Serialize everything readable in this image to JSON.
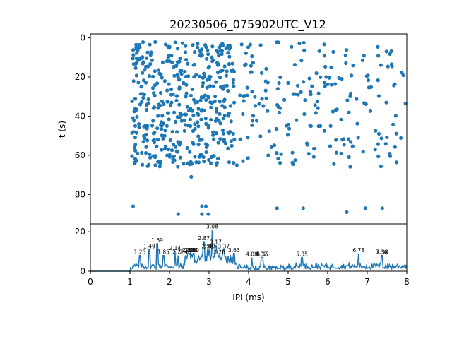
{
  "title": "20230506_075902UTC_V12",
  "colors": {
    "series": "#1f77b4",
    "axis": "#000000",
    "background": "#ffffff"
  },
  "chart_data": [
    {
      "type": "scatter",
      "title": "20230506_075902UTC_V12",
      "xlabel": "",
      "ylabel": "t (s)",
      "xlim": [
        0,
        8
      ],
      "ylim": [
        95,
        -2
      ],
      "y_inverted": true,
      "yticks": [
        0,
        20,
        40,
        60,
        80
      ],
      "grid": false,
      "legend": "none",
      "bands": [
        {
          "name": "band-0-66s",
          "x_range": [
            1.05,
            8.0
          ],
          "y_range": [
            2,
            66
          ],
          "count": 640
        },
        {
          "name": "sparse-70s",
          "points": [
            [
              2.55,
              71
            ]
          ]
        },
        {
          "name": "sparse-86s",
          "points": [
            [
              1.08,
              86
            ],
            [
              2.82,
              86
            ],
            [
              2.92,
              86
            ],
            [
              4.72,
              87
            ],
            [
              5.38,
              87
            ],
            [
              6.95,
              87
            ],
            [
              7.38,
              87
            ]
          ]
        },
        {
          "name": "sparse-90s",
          "points": [
            [
              2.22,
              90
            ],
            [
              2.82,
              90
            ],
            [
              2.98,
              90
            ],
            [
              6.48,
              89
            ]
          ]
        }
      ]
    },
    {
      "type": "line",
      "title": "",
      "xlabel": "IPI (ms)",
      "ylabel": "",
      "xlim": [
        0,
        8
      ],
      "ylim": [
        0,
        24
      ],
      "xticks": [
        0,
        1,
        2,
        3,
        4,
        5,
        6,
        7,
        8
      ],
      "yticks": [
        0,
        20
      ],
      "grid": false,
      "legend": "none",
      "peaks": [
        {
          "x": 1.25,
          "y": 8,
          "label": "1.25"
        },
        {
          "x": 1.49,
          "y": 11,
          "label": "1.49"
        },
        {
          "x": 1.69,
          "y": 14,
          "label": "1.69"
        },
        {
          "x": 1.85,
          "y": 8,
          "label": "1.85"
        },
        {
          "x": 2.14,
          "y": 10,
          "label": "2.14"
        },
        {
          "x": 2.22,
          "y": 8,
          "label": "2.22"
        },
        {
          "x": 2.4,
          "y": 8,
          "label": "2.40"
        },
        {
          "x": 2.47,
          "y": 9,
          "label": "2.47"
        },
        {
          "x": 2.52,
          "y": 9,
          "label": "2.52"
        },
        {
          "x": 2.56,
          "y": 9,
          "label": "2.56"
        },
        {
          "x": 2.6,
          "y": 9,
          "label": "2.60"
        },
        {
          "x": 2.87,
          "y": 15,
          "label": "2.87"
        },
        {
          "x": 2.96,
          "y": 11,
          "label": "2.96"
        },
        {
          "x": 3.0,
          "y": 11,
          "label": "3.00"
        },
        {
          "x": 3.08,
          "y": 21,
          "label": "3.08"
        },
        {
          "x": 3.17,
          "y": 13,
          "label": "3.17"
        },
        {
          "x": 3.26,
          "y": 8,
          "label": "3.26"
        },
        {
          "x": 3.37,
          "y": 11,
          "label": "3.37"
        },
        {
          "x": 3.63,
          "y": 9,
          "label": "3.63"
        },
        {
          "x": 4.08,
          "y": 7,
          "label": "4.08"
        },
        {
          "x": 4.32,
          "y": 7,
          "label": "4.32"
        },
        {
          "x": 4.35,
          "y": 7,
          "label": "4.35"
        },
        {
          "x": 5.35,
          "y": 7,
          "label": "5.35"
        },
        {
          "x": 6.78,
          "y": 9,
          "label": "6.78"
        },
        {
          "x": 7.36,
          "y": 8,
          "label": "7.36"
        },
        {
          "x": 7.38,
          "y": 8,
          "label": "7.38"
        }
      ]
    }
  ]
}
